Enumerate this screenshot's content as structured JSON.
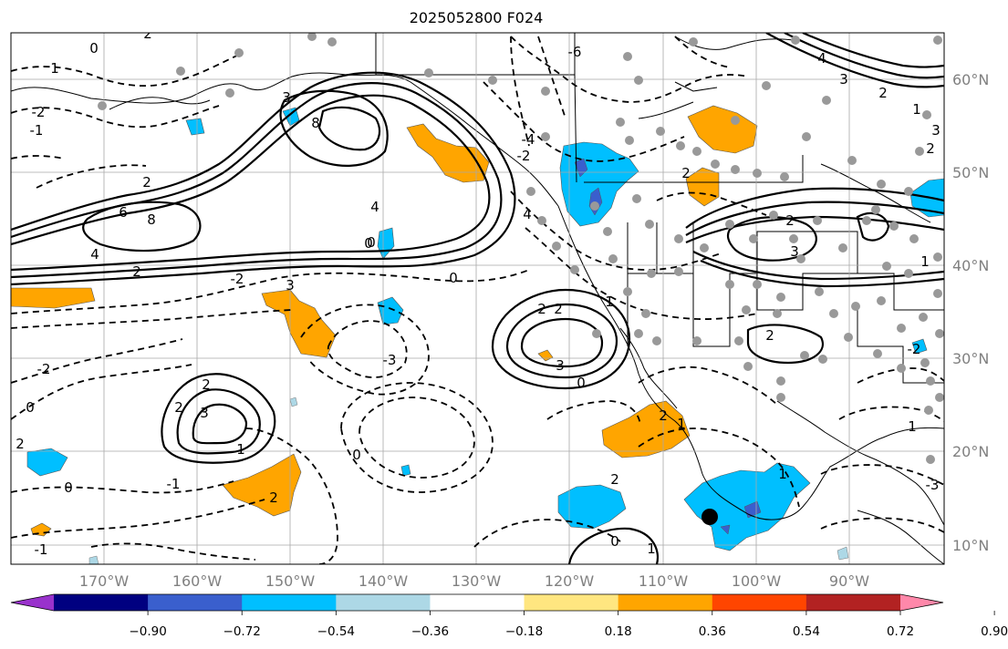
{
  "title": "2025052800 F024",
  "map": {
    "lon_ticks": [
      "170°W",
      "160°W",
      "150°W",
      "140°W",
      "130°W",
      "120°W",
      "110°W",
      "100°W",
      "90°W"
    ],
    "lat_ticks": [
      "60°N",
      "50°N",
      "40°N",
      "30°N",
      "20°N",
      "10°N"
    ],
    "contour_labels": [
      "0",
      "1",
      "2",
      "-2",
      "-1",
      "8",
      "6",
      "8",
      "4",
      "3",
      "2",
      "2",
      "4",
      "0",
      "-2",
      "3",
      "0",
      "2",
      "2",
      "3",
      "1",
      "-3",
      "0",
      "-2",
      "0",
      "2",
      "3",
      "2",
      "1",
      "0",
      "-1",
      "2",
      "0",
      "2",
      "2",
      "1",
      "1",
      "0",
      "-1",
      "2",
      "1",
      "2",
      "-6",
      "-4",
      "4",
      "-2",
      "2",
      "0",
      "3",
      "2",
      "1",
      "2",
      "3",
      "4",
      "3",
      "1",
      "2",
      "-3",
      "-2",
      "1"
    ],
    "shading_colors": {
      "strong_neg": "#1e90ff",
      "neg": "#00bfff",
      "weak_neg": "#add8e6",
      "weak_pos": "#ffe680",
      "pos": "#ffa500",
      "strong_pos": "#ff4500",
      "marker": "#000000",
      "station": "#999999"
    },
    "marker_icon": "storm-center-dot"
  },
  "colorbar": {
    "tick_labels": [
      "−0.90",
      "−0.72",
      "−0.54",
      "−0.36",
      "−0.18",
      "0.18",
      "0.36",
      "0.54",
      "0.72",
      "0.90"
    ],
    "colors": [
      "#9932cc",
      "#000080",
      "#3a5fcd",
      "#00bfff",
      "#add8e6",
      "#ffffff",
      "#ffe680",
      "#ffa500",
      "#ff4500",
      "#b22222",
      "#ff88aa"
    ]
  }
}
